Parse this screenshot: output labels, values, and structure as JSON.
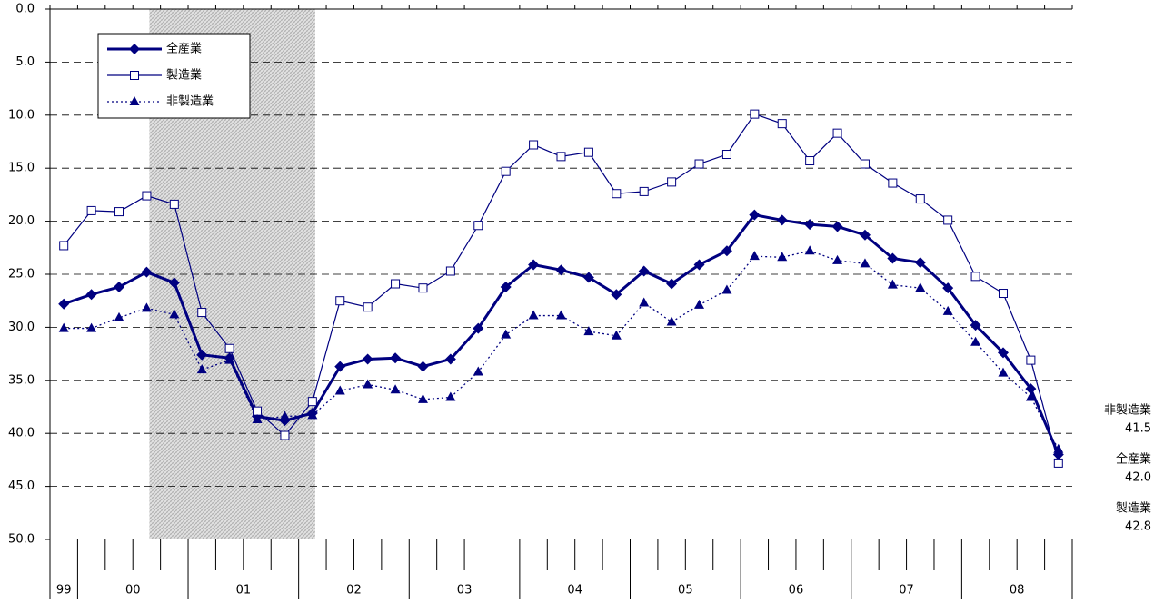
{
  "chart_data": {
    "type": "line",
    "categories": [
      "99",
      "00",
      null,
      null,
      null,
      "01",
      null,
      null,
      null,
      "02",
      null,
      null,
      null,
      "03",
      null,
      null,
      null,
      "04",
      null,
      null,
      null,
      "05",
      null,
      null,
      null,
      "06",
      null,
      null,
      null,
      "07",
      null,
      null,
      null,
      "08",
      null,
      null,
      null
    ],
    "series": [
      {
        "name": "全産業",
        "color": "#000080",
        "marker": "diamond",
        "dash": "solid",
        "last_label": "42.0",
        "values": [
          27.8,
          26.9,
          26.2,
          24.8,
          25.8,
          32.6,
          32.9,
          38.4,
          38.8,
          38.1,
          33.7,
          33.0,
          32.9,
          33.7,
          33.0,
          30.1,
          26.2,
          24.1,
          24.6,
          25.3,
          26.9,
          24.7,
          25.9,
          24.1,
          22.8,
          19.4,
          19.9,
          20.3,
          20.5,
          21.3,
          23.5,
          23.9,
          26.3,
          29.8,
          32.4,
          35.8,
          42.0
        ]
      },
      {
        "name": "製造業",
        "color": "#000080",
        "marker": "square",
        "dash": "thin",
        "last_label": "42.8",
        "values": [
          22.3,
          19.0,
          19.1,
          17.6,
          18.4,
          28.6,
          32.0,
          37.9,
          40.2,
          37.0,
          27.5,
          28.1,
          25.9,
          26.3,
          24.7,
          20.4,
          15.3,
          12.8,
          13.9,
          13.5,
          17.4,
          17.2,
          16.3,
          14.6,
          13.7,
          9.9,
          10.8,
          14.3,
          11.7,
          14.6,
          16.4,
          17.9,
          19.9,
          25.2,
          26.8,
          33.1,
          42.8
        ]
      },
      {
        "name": "非製造業",
        "color": "#000080",
        "marker": "triangle",
        "dash": "dotted",
        "last_label": "41.5",
        "values": [
          30.1,
          30.1,
          29.1,
          28.2,
          28.8,
          34.0,
          33.1,
          38.7,
          38.4,
          38.3,
          36.0,
          35.4,
          35.9,
          36.8,
          36.6,
          34.2,
          30.7,
          28.9,
          28.9,
          30.4,
          30.8,
          27.7,
          29.5,
          27.9,
          26.5,
          23.3,
          23.4,
          22.8,
          23.7,
          24.0,
          26.0,
          26.3,
          28.5,
          31.4,
          34.3,
          36.6,
          41.5
        ]
      }
    ],
    "ylim": [
      0,
      50
    ],
    "y_inverted": true,
    "yticks": [
      {
        "value": 0,
        "label": "0.0"
      },
      {
        "value": 5,
        "label": "5.0"
      },
      {
        "value": 10,
        "label": "10.0"
      },
      {
        "value": 15,
        "label": "15.0"
      },
      {
        "value": 20,
        "label": "20.0"
      },
      {
        "value": 25,
        "label": "25.0"
      },
      {
        "value": 30,
        "label": "30.0"
      },
      {
        "value": 35,
        "label": "35.0"
      },
      {
        "value": 40,
        "label": "40.0"
      },
      {
        "value": 45,
        "label": "45.0"
      },
      {
        "value": 50,
        "label": "50.0"
      }
    ],
    "grid": true,
    "legend": "upper-left",
    "shaded_span": [
      3.6,
      9.6
    ]
  }
}
